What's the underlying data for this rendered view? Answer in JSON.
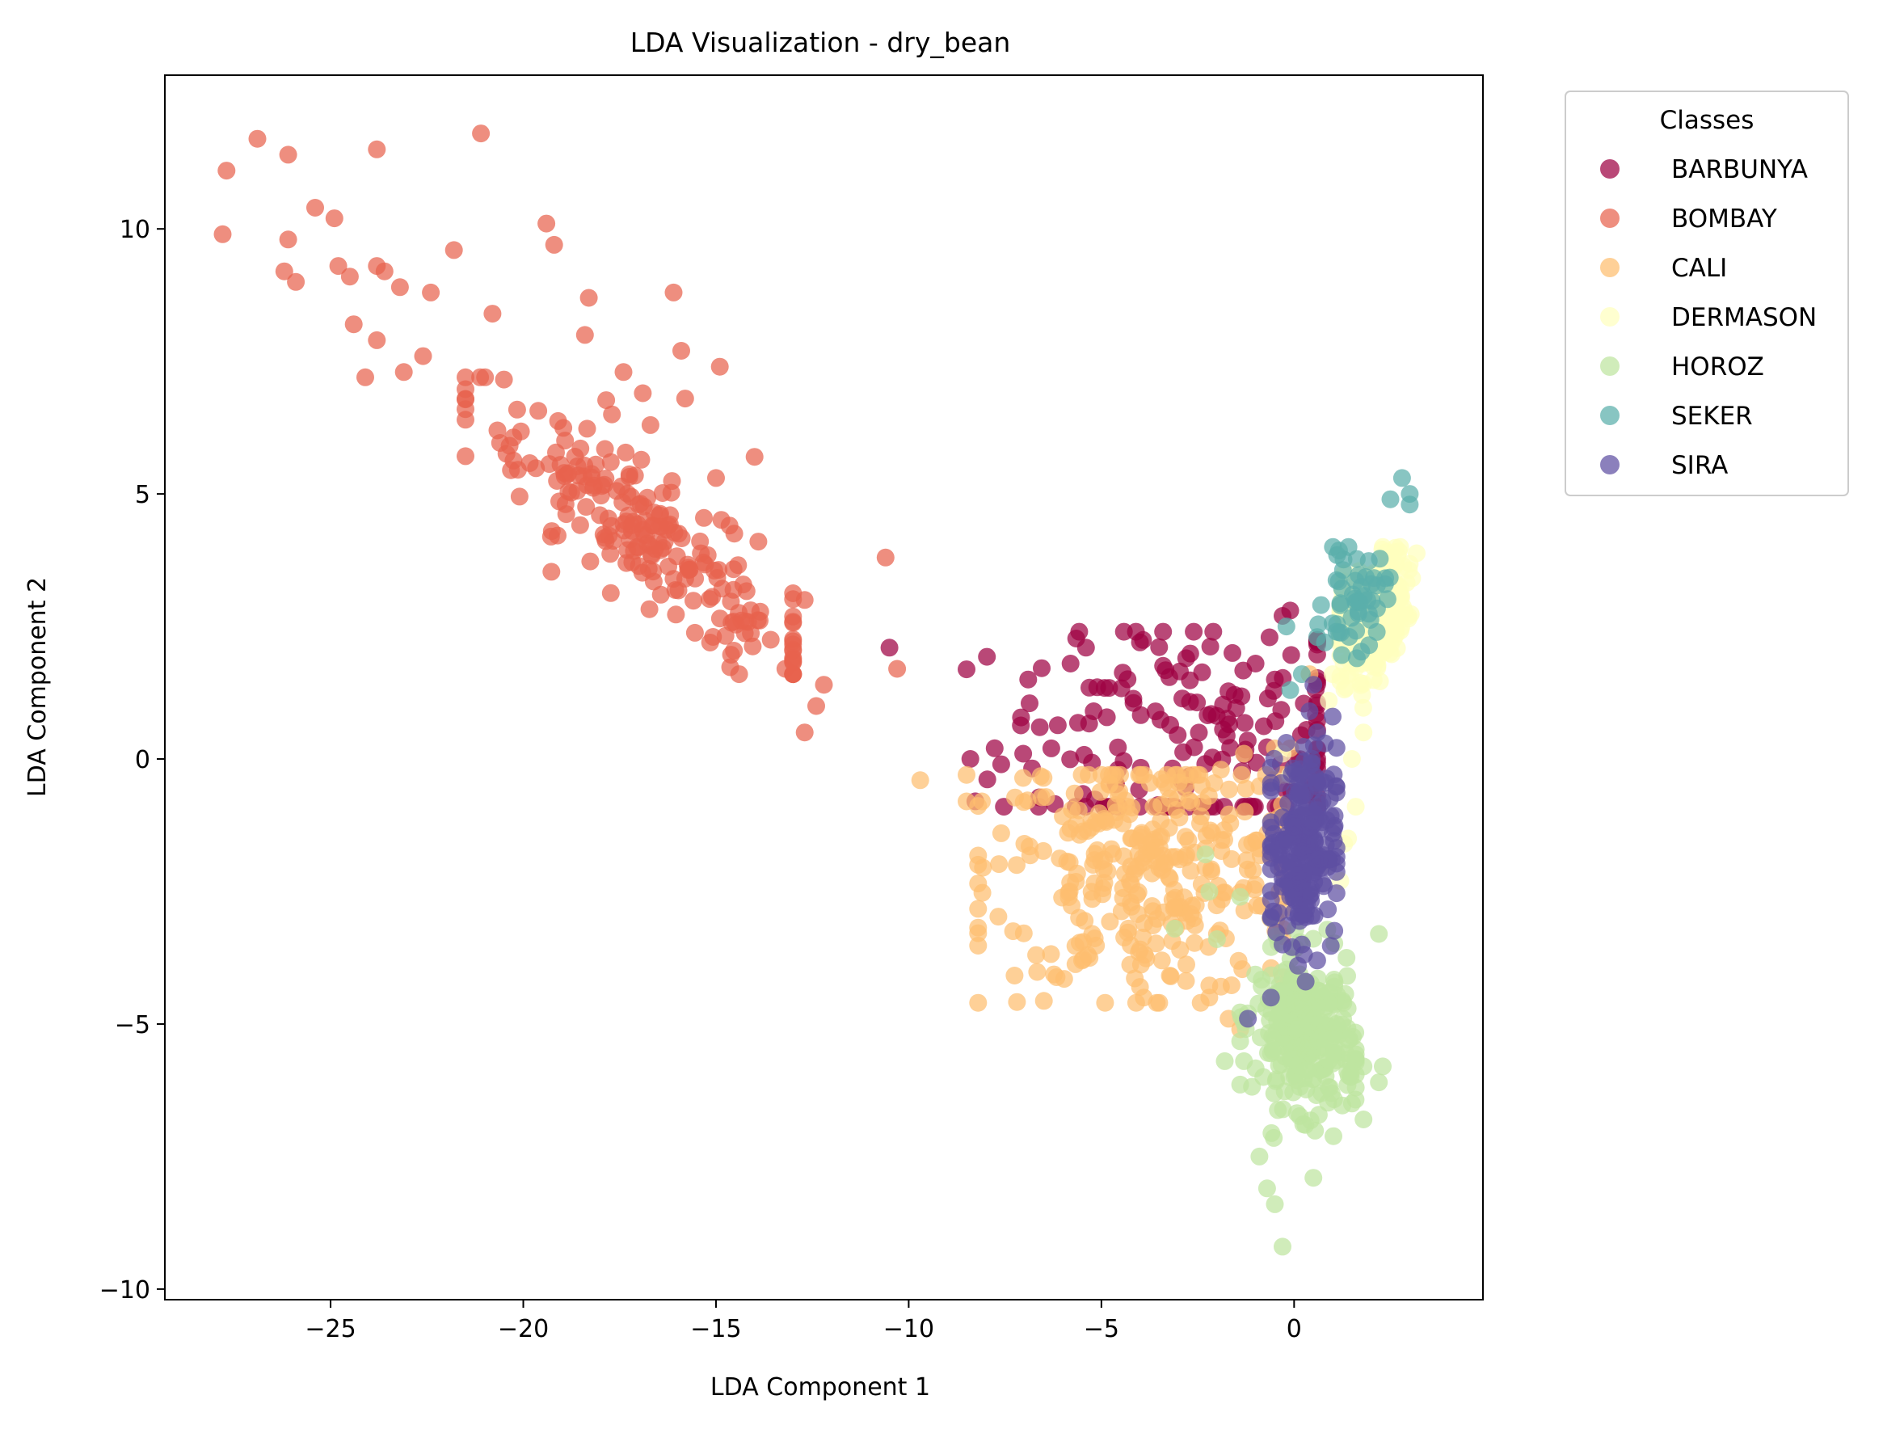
{
  "chart_data": {
    "type": "scatter",
    "title": "LDA Visualization - dry_bean",
    "xlabel": "LDA Component 1",
    "ylabel": "LDA Component 2",
    "xlim": [
      -29.3,
      4.9
    ],
    "ylim": [
      -10.2,
      12.9
    ],
    "xticks": [
      -25,
      -20,
      -15,
      -10,
      -5,
      0
    ],
    "xtick_labels": [
      "−25",
      "−20",
      "−15",
      "−10",
      "−5",
      "0"
    ],
    "yticks": [
      -10,
      -5,
      0,
      5,
      10
    ],
    "ytick_labels": [
      "−10",
      "−5",
      "0",
      "5",
      "10"
    ],
    "grid": false,
    "legend": {
      "title": "Classes",
      "placement": "outside-top-right"
    },
    "series": [
      {
        "name": "BARBUNYA",
        "color": "#9e0142",
        "cluster": {
          "cx": -2.4,
          "cy": 0.3,
          "sx": 2.7,
          "sy": 1.3,
          "n": 170,
          "xmin": -8.5,
          "xmax": 0.6,
          "ymin": -0.9,
          "ymax": 2.4
        },
        "points": [
          [
            -8.4,
            0.0
          ],
          [
            -7.6,
            -0.1
          ],
          [
            -6.9,
            1.5
          ],
          [
            -6.6,
            0.6
          ],
          [
            -5.8,
            1.8
          ],
          [
            -5.4,
            2.1
          ],
          [
            -4.0,
            2.2
          ],
          [
            -2.8,
            1.9
          ],
          [
            -1.6,
            2.0
          ],
          [
            -1.0,
            1.8
          ],
          [
            -0.3,
            2.7
          ],
          [
            -0.1,
            2.8
          ],
          [
            -0.5,
            1.5
          ],
          [
            -10.5,
            2.1
          ],
          [
            -5.2,
            0.9
          ],
          [
            -6.3,
            0.2
          ]
        ]
      },
      {
        "name": "BOMBAY",
        "color": "#e8624e",
        "cluster": {
          "cx": -16.8,
          "cy": 4.0,
          "sx": 2.4,
          "sy": 1.1,
          "n": 220,
          "xmin": -21.5,
          "xmax": -13.0,
          "ymin": 1.6,
          "ymax": 7.2,
          "slope": -0.56,
          "ix": -16.8,
          "iy": 4.2
        },
        "points": [
          [
            -27.8,
            9.9
          ],
          [
            -27.7,
            11.1
          ],
          [
            -26.9,
            11.7
          ],
          [
            -26.1,
            11.4
          ],
          [
            -26.1,
            9.8
          ],
          [
            -26.2,
            9.2
          ],
          [
            -25.9,
            9.0
          ],
          [
            -25.4,
            10.4
          ],
          [
            -24.9,
            10.2
          ],
          [
            -24.8,
            9.3
          ],
          [
            -24.5,
            9.1
          ],
          [
            -23.8,
            11.5
          ],
          [
            -23.8,
            9.3
          ],
          [
            -23.6,
            9.2
          ],
          [
            -24.4,
            8.2
          ],
          [
            -23.8,
            7.9
          ],
          [
            -23.2,
            8.9
          ],
          [
            -22.4,
            8.8
          ],
          [
            -21.8,
            9.6
          ],
          [
            -21.1,
            11.8
          ],
          [
            -20.8,
            8.4
          ],
          [
            -19.4,
            10.1
          ],
          [
            -19.2,
            9.7
          ],
          [
            -18.3,
            8.7
          ],
          [
            -16.1,
            8.8
          ],
          [
            -15.9,
            7.7
          ],
          [
            -14.9,
            7.4
          ],
          [
            -17.4,
            7.3
          ],
          [
            -16.9,
            6.9
          ],
          [
            -15.8,
            6.8
          ],
          [
            -17.7,
            6.5
          ],
          [
            -16.7,
            6.3
          ],
          [
            -14.0,
            5.7
          ],
          [
            -15.0,
            5.3
          ],
          [
            -13.9,
            4.1
          ],
          [
            -12.7,
            3.0
          ],
          [
            -12.2,
            1.4
          ],
          [
            -12.4,
            1.0
          ],
          [
            -12.7,
            0.5
          ],
          [
            -10.6,
            3.8
          ],
          [
            -10.3,
            1.7
          ],
          [
            -13.2,
            1.7
          ],
          [
            -14.4,
            1.6
          ],
          [
            -18.4,
            8.0
          ],
          [
            -22.6,
            7.6
          ],
          [
            -23.1,
            7.3
          ],
          [
            -24.1,
            7.2
          ]
        ]
      },
      {
        "name": "CALI",
        "color": "#fdbe6f",
        "cluster": {
          "cx": -3.7,
          "cy": -2.1,
          "sx": 2.1,
          "sy": 1.2,
          "n": 320,
          "xmin": -8.2,
          "xmax": -0.3,
          "ymin": -4.6,
          "ymax": -0.3
        },
        "points": [
          [
            -9.7,
            -0.4
          ],
          [
            -8.5,
            -0.3
          ],
          [
            -8.5,
            -0.8
          ],
          [
            -8.1,
            -0.8
          ],
          [
            -7.6,
            -1.4
          ],
          [
            -7.0,
            -1.6
          ],
          [
            -7.2,
            -2.0
          ],
          [
            -5.5,
            -3.8
          ],
          [
            -4.3,
            -3.2
          ],
          [
            -4.0,
            -4.3
          ],
          [
            -3.9,
            -4.5
          ],
          [
            -3.5,
            -4.6
          ],
          [
            -3.2,
            -4.1
          ],
          [
            -2.2,
            -4.5
          ],
          [
            -1.7,
            -4.9
          ],
          [
            -1.4,
            -5.1
          ],
          [
            -2.4,
            -0.5
          ],
          [
            -1.9,
            -0.2
          ],
          [
            -1.3,
            0.1
          ],
          [
            -0.5,
            0.2
          ],
          [
            -0.1,
            0.2
          ],
          [
            0.4,
            1.6
          ],
          [
            -2.0,
            -3.3
          ]
        ]
      },
      {
        "name": "DERMASON",
        "color": "#ffffbe",
        "cluster": {
          "cx": 2.0,
          "cy": 2.3,
          "sx": 0.45,
          "sy": 0.9,
          "n": 340,
          "xmin": 1.2,
          "xmax": 3.2,
          "ymin": -0.8,
          "ymax": 4.0,
          "slope": 0.55,
          "ix": 2.3,
          "iy": 2.8
        },
        "points": [
          [
            1.4,
            -1.5
          ],
          [
            1.6,
            -0.9
          ],
          [
            1.3,
            -1.6
          ],
          [
            0.9,
            -2.0
          ],
          [
            1.2,
            -2.3
          ],
          [
            0.6,
            -1.9
          ],
          [
            0.9,
            1.1
          ],
          [
            1.0,
            1.6
          ],
          [
            -0.1,
            -0.3
          ],
          [
            -0.3,
            0.1
          ],
          [
            1.5,
            0.0
          ],
          [
            1.8,
            0.5
          ],
          [
            2.3,
            4.0
          ],
          [
            2.6,
            3.9
          ],
          [
            1.3,
            3.5
          ]
        ]
      },
      {
        "name": "HOROZ",
        "color": "#bee5a0",
        "cluster": {
          "cx": 0.3,
          "cy": -5.2,
          "sx": 0.65,
          "sy": 1.3,
          "n": 300,
          "xmin": -1.4,
          "xmax": 1.6,
          "ymin": -8.2,
          "ymax": -2.8,
          "slope": -0.18,
          "ix": 0.3,
          "iy": -5.2
        },
        "points": [
          [
            -0.3,
            -9.2
          ],
          [
            -0.5,
            -8.4
          ],
          [
            -0.7,
            -8.1
          ],
          [
            1.8,
            -5.8
          ],
          [
            2.3,
            -5.8
          ],
          [
            2.2,
            -6.1
          ],
          [
            1.8,
            -6.8
          ],
          [
            1.5,
            -6.5
          ],
          [
            2.2,
            -3.3
          ],
          [
            -1.3,
            -5.7
          ],
          [
            -1.8,
            -5.7
          ],
          [
            -2.3,
            -1.8
          ],
          [
            -2.2,
            -2.5
          ],
          [
            -1.4,
            -2.6
          ],
          [
            -3.1,
            -3.2
          ],
          [
            -2.0,
            -3.4
          ],
          [
            -0.9,
            -7.5
          ],
          [
            -1.2,
            -4.8
          ],
          [
            0.5,
            -7.9
          ],
          [
            1.4,
            -5.3
          ],
          [
            -0.8,
            -6.0
          ],
          [
            0.9,
            -4.4
          ],
          [
            -0.6,
            -3.0
          ],
          [
            0.2,
            -2.9
          ]
        ]
      },
      {
        "name": "SEKER",
        "color": "#5aaeaa",
        "cluster": {
          "cx": 1.6,
          "cy": 3.0,
          "sx": 0.4,
          "sy": 0.5,
          "n": 50,
          "xmin": 0.6,
          "xmax": 3.0,
          "ymin": 1.9,
          "ymax": 4.0
        },
        "points": [
          [
            2.8,
            5.3
          ],
          [
            3.0,
            5.0
          ],
          [
            3.0,
            4.8
          ],
          [
            2.5,
            4.9
          ],
          [
            0.2,
            1.6
          ],
          [
            -0.2,
            2.5
          ],
          [
            0.6,
            2.3
          ],
          [
            0.8,
            2.2
          ],
          [
            1.1,
            2.4
          ],
          [
            1.2,
            2.9
          ],
          [
            1.9,
            3.0
          ],
          [
            -0.1,
            1.3
          ]
        ]
      },
      {
        "name": "SIRA",
        "color": "#5e4fa2",
        "cluster": {
          "cx": 0.2,
          "cy": -1.6,
          "sx": 0.45,
          "sy": 0.9,
          "n": 220,
          "xmin": -0.6,
          "xmax": 1.1,
          "ymin": -3.8,
          "ymax": 0.7
        },
        "points": [
          [
            -1.2,
            -4.9
          ],
          [
            -0.6,
            -4.5
          ],
          [
            -0.3,
            -3.5
          ],
          [
            0.1,
            -3.9
          ],
          [
            0.3,
            -4.2
          ],
          [
            0.6,
            -3.8
          ],
          [
            0.2,
            -3.5
          ],
          [
            -0.6,
            -3.0
          ],
          [
            0.9,
            -1.9
          ],
          [
            1.0,
            -1.4
          ],
          [
            0.6,
            0.5
          ],
          [
            0.4,
            0.9
          ],
          [
            1.0,
            0.8
          ],
          [
            0.5,
            1.4
          ],
          [
            -0.6,
            -0.6
          ],
          [
            -0.3,
            -1.1
          ]
        ]
      }
    ]
  }
}
